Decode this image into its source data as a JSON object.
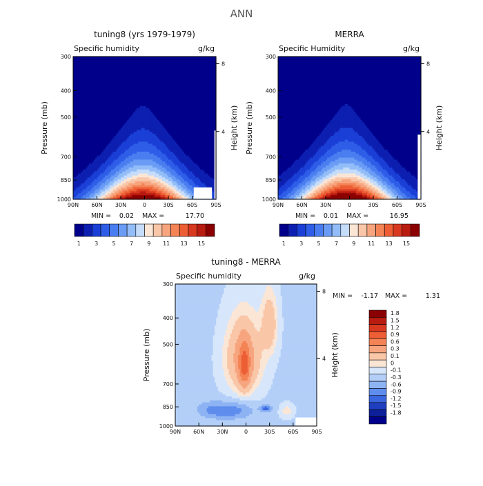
{
  "figure": {
    "title": "ANN"
  },
  "panels": [
    {
      "title": "tuning8 (yrs 1979-1979)",
      "variable": "Specific humidity",
      "units": "g/kg",
      "ylabel": "Pressure (mb)",
      "ylabel_right": "Height (km)",
      "pressure_ticks": [
        "300",
        "400",
        "500",
        "700",
        "850",
        "1000"
      ],
      "height_ticks": [
        "8",
        "4"
      ],
      "lat_ticks": [
        "90N",
        "60N",
        "30N",
        "0",
        "30S",
        "60S",
        "90S"
      ],
      "stats": {
        "min_label": "MIN =",
        "min": "0.02",
        "max_label": "MAX =",
        "max": "17.70"
      }
    },
    {
      "title": "MERRA",
      "variable": "Specific Humidity",
      "units": "g/kg",
      "ylabel": "Pressure (mb)",
      "ylabel_right": "Height (km)",
      "pressure_ticks": [
        "300",
        "400",
        "500",
        "700",
        "850",
        "1000"
      ],
      "height_ticks": [
        "8",
        "4"
      ],
      "lat_ticks": [
        "90N",
        "60N",
        "30N",
        "0",
        "30S",
        "60S",
        "90S"
      ],
      "stats": {
        "min_label": "MIN =",
        "min": "0.01",
        "max_label": "MAX =",
        "max": "16.95"
      }
    },
    {
      "title": "tuning8 - MERRA",
      "variable": "Specific humidity",
      "units": "g/kg",
      "ylabel": "Pressure (mb)",
      "ylabel_right": "Height (km)",
      "pressure_ticks": [
        "300",
        "400",
        "500",
        "700",
        "850",
        "1000"
      ],
      "height_ticks": [
        "8",
        "4"
      ],
      "lat_ticks": [
        "90N",
        "60N",
        "30N",
        "0",
        "30S",
        "60S",
        "90S"
      ],
      "stats": {
        "min_label": "MIN =",
        "min": "-1.17",
        "max_label": "MAX =",
        "max": "1.31"
      }
    }
  ],
  "colorbars": {
    "humidity": {
      "labels": [
        "1",
        "3",
        "5",
        "7",
        "9",
        "11",
        "13",
        "15"
      ],
      "colors": [
        "#00008b",
        "#0d1fb0",
        "#1a3fd6",
        "#2e5ee8",
        "#4a7ef0",
        "#6b9cf5",
        "#93bdf8",
        "#c5dcfb",
        "#fbe6d6",
        "#f9c6a8",
        "#f7a57e",
        "#f48355",
        "#ed5e35",
        "#d8381f",
        "#b81b10",
        "#8b0000"
      ]
    },
    "difference": {
      "labels": [
        "1.8",
        "1.5",
        "1.2",
        "0.9",
        "0.6",
        "0.3",
        "0.1",
        "0",
        "-0.1",
        "-0.3",
        "-0.6",
        "-0.9",
        "-1.2",
        "-1.5",
        "-1.8"
      ],
      "colors": [
        "#8b0000",
        "#b81b10",
        "#d8381f",
        "#ed5e35",
        "#f48355",
        "#f7a57e",
        "#f9c6a8",
        "#fbe6d6",
        "#d7e6fb",
        "#b3cff8",
        "#8db3f3",
        "#5f8ded",
        "#3a66e0",
        "#1f3fc0",
        "#0d1f99",
        "#00008b"
      ]
    }
  },
  "chart_data": [
    {
      "type": "heatmap",
      "title": "tuning8 (yrs 1979-1979)",
      "variable": "Specific humidity",
      "units": "g/kg",
      "x": [
        90,
        60,
        30,
        0,
        -30,
        -60,
        -90
      ],
      "xlabel": "",
      "ylabel": "Pressure (mb)",
      "ylim": [
        1000,
        300
      ],
      "yscale": "log",
      "contour_levels": [
        1,
        2,
        3,
        4,
        5,
        6,
        7,
        8,
        9,
        10,
        11,
        12,
        13,
        14,
        15
      ],
      "min": 0.02,
      "max": 17.7
    },
    {
      "type": "heatmap",
      "title": "MERRA",
      "variable": "Specific Humidity",
      "units": "g/kg",
      "x": [
        90,
        60,
        30,
        0,
        -30,
        -60,
        -90
      ],
      "xlabel": "",
      "ylabel": "Pressure (mb)",
      "ylim": [
        1000,
        300
      ],
      "yscale": "log",
      "contour_levels": [
        1,
        2,
        3,
        4,
        5,
        6,
        7,
        8,
        9,
        10,
        11,
        12,
        13,
        14,
        15
      ],
      "min": 0.01,
      "max": 16.95
    },
    {
      "type": "heatmap",
      "title": "tuning8 - MERRA",
      "variable": "Specific humidity",
      "units": "g/kg",
      "x": [
        90,
        60,
        30,
        0,
        -30,
        -60,
        -90
      ],
      "xlabel": "",
      "ylabel": "Pressure (mb)",
      "ylim": [
        1000,
        300
      ],
      "yscale": "log",
      "contour_levels": [
        -1.8,
        -1.5,
        -1.2,
        -0.9,
        -0.6,
        -0.3,
        -0.1,
        0,
        0.1,
        0.3,
        0.6,
        0.9,
        1.2,
        1.5,
        1.8
      ],
      "min": -1.17,
      "max": 1.31
    }
  ]
}
